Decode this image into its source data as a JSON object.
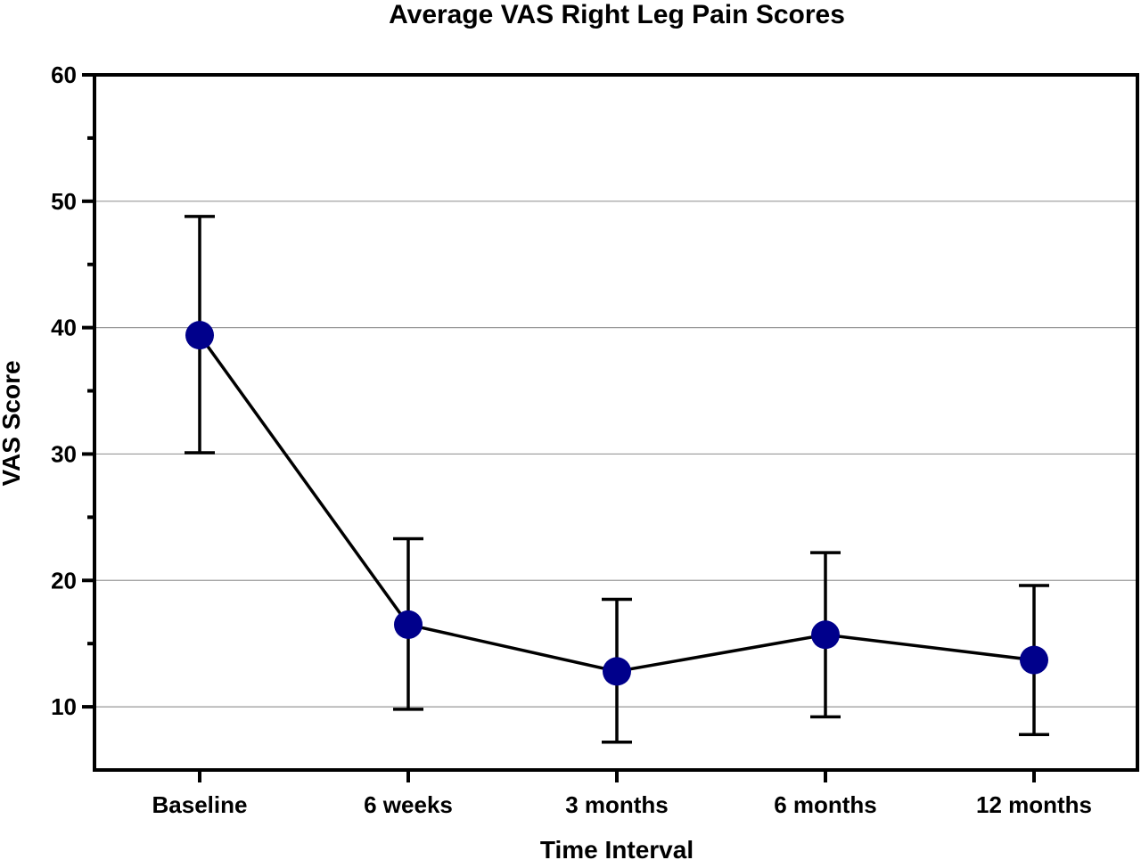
{
  "chart_data": {
    "type": "line",
    "title": "Average VAS Right Leg Pain Scores",
    "xlabel": "Time Interval",
    "ylabel": "VAS Score",
    "categories": [
      "Baseline",
      "6 weeks",
      "3 months",
      "6 months",
      "12 months"
    ],
    "series": [
      {
        "values": [
          39.4,
          16.5,
          12.8,
          15.7,
          13.7
        ],
        "error_low": [
          30.1,
          9.8,
          7.2,
          9.2,
          7.8
        ],
        "error_high": [
          48.8,
          23.3,
          18.5,
          22.2,
          19.6
        ]
      }
    ],
    "ylim": [
      5,
      60
    ],
    "yticks": [
      10,
      20,
      30,
      40,
      50,
      60
    ],
    "grid": true,
    "colors": {
      "marker": "#00008b",
      "line": "#000000",
      "grid": "#999999",
      "axis": "#000000"
    }
  }
}
